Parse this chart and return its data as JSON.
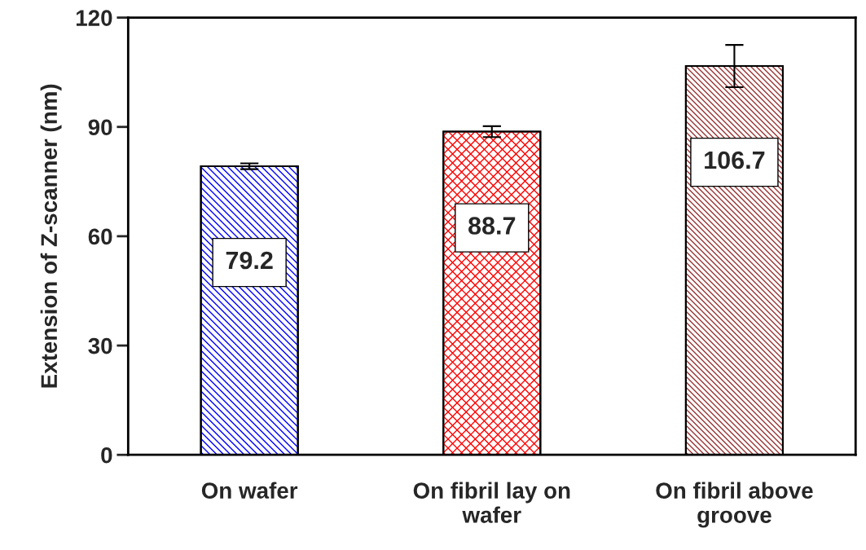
{
  "chart_data": {
    "type": "bar",
    "ylabel": "Extension of Z-scanner (nm)",
    "categories": [
      "On wafer",
      "On fibril lay on\nwafer",
      "On fibril above\ngroove"
    ],
    "values": [
      79.2,
      88.7,
      106.7
    ],
    "errors": [
      0.8,
      1.5,
      5.8
    ],
    "colors": [
      "#0000ff",
      "#ff0000",
      "#993333"
    ],
    "ylim": [
      0,
      120
    ],
    "yticks": [
      0,
      30,
      60,
      90,
      120
    ],
    "data_labels": true,
    "grid": false,
    "legend": false
  }
}
